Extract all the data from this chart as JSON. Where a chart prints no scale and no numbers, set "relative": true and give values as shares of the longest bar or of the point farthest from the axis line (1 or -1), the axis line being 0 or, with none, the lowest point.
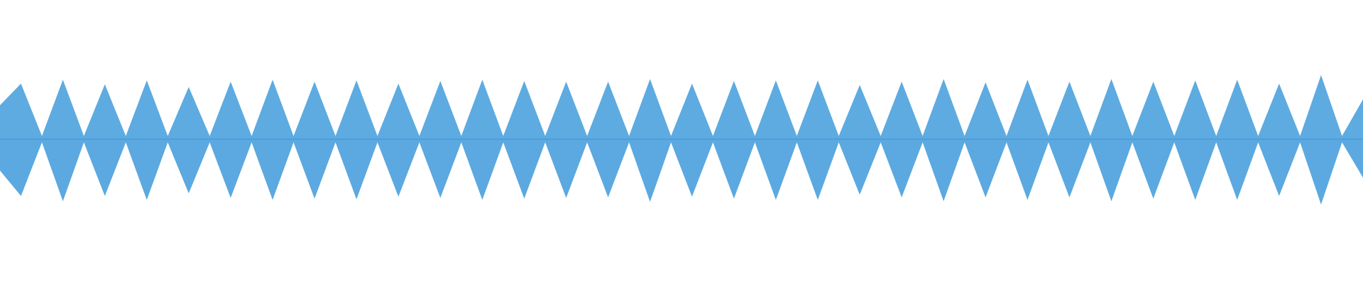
{
  "chart_data": {
    "type": "area",
    "relative": true,
    "ref_lines": [
      {
        "axis": "y",
        "value": 0,
        "color": "#4a9bd8"
      }
    ],
    "categories": [
      null,
      null,
      null,
      null,
      null,
      null,
      null,
      null,
      null,
      null,
      null,
      null,
      null,
      null,
      null,
      null,
      null,
      null,
      null,
      null,
      null,
      null,
      null,
      null,
      null,
      null,
      null,
      null,
      null,
      null,
      null,
      null,
      null,
      null,
      null,
      null,
      null,
      null,
      null,
      null,
      null,
      null,
      null,
      null,
      null,
      null,
      null,
      null,
      null,
      null,
      null,
      null,
      null,
      null,
      null,
      null,
      null,
      null,
      null,
      null,
      null,
      null,
      null,
      null,
      null,
      null
    ],
    "series": [
      {
        "color": "#5dabe1",
        "values": [
          0.52,
          0.85,
          0.05,
          0.91,
          0.05,
          0.84,
          0.05,
          0.9,
          0.05,
          0.8,
          0.05,
          0.88,
          0.05,
          0.91,
          0.05,
          0.88,
          0.05,
          0.9,
          0.05,
          0.85,
          0.05,
          0.89,
          0.05,
          0.91,
          0.05,
          0.89,
          0.05,
          0.88,
          0.05,
          0.88,
          0.05,
          0.92,
          0.05,
          0.85,
          0.05,
          0.89,
          0.05,
          0.9,
          0.05,
          0.9,
          0.05,
          0.83,
          0.05,
          0.88,
          0.05,
          0.92,
          0.05,
          0.87,
          0.05,
          0.91,
          0.05,
          0.88,
          0.05,
          0.92,
          0.05,
          0.88,
          0.05,
          0.9,
          0.05,
          0.91,
          0.05,
          0.85,
          0.05,
          0.98,
          0.05,
          0.61
        ]
      },
      {
        "color": "#5ba9e0",
        "values": [
          -0.48,
          -0.87,
          -0.05,
          -0.95,
          -0.05,
          -0.87,
          -0.05,
          -0.93,
          -0.05,
          -0.83,
          -0.05,
          -0.9,
          -0.05,
          -0.93,
          -0.05,
          -0.91,
          -0.05,
          -0.92,
          -0.05,
          -0.88,
          -0.05,
          -0.9,
          -0.05,
          -0.93,
          -0.05,
          -0.91,
          -0.05,
          -0.9,
          -0.05,
          -0.89,
          -0.05,
          -0.96,
          -0.05,
          -0.88,
          -0.05,
          -0.91,
          -0.05,
          -0.93,
          -0.05,
          -0.93,
          -0.05,
          -0.85,
          -0.05,
          -0.89,
          -0.05,
          -0.95,
          -0.05,
          -0.89,
          -0.05,
          -0.93,
          -0.05,
          -0.89,
          -0.05,
          -0.95,
          -0.05,
          -0.91,
          -0.05,
          -0.93,
          -0.05,
          -0.93,
          -0.05,
          -0.87,
          -0.05,
          -1.0,
          -0.05,
          -0.59
        ]
      }
    ]
  }
}
